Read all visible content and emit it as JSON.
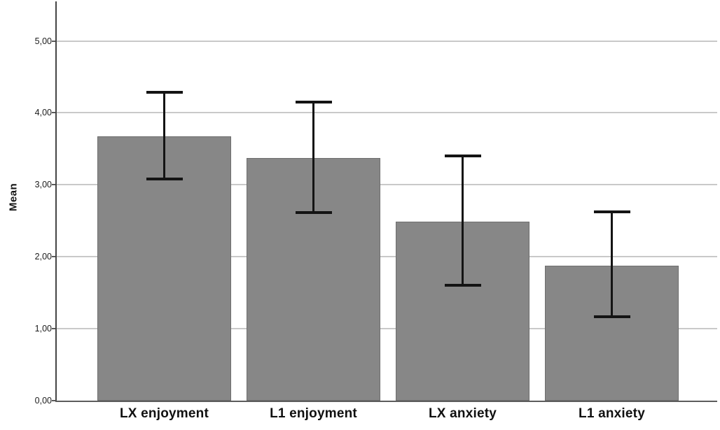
{
  "chart_data": {
    "type": "bar",
    "title": "",
    "xlabel": "",
    "ylabel": "Mean",
    "categories": [
      "LX enjoyment",
      "L1 enjoyment",
      "LX anxiety",
      "L1 anxiety"
    ],
    "series": [
      {
        "name": "Mean",
        "values": [
          3.67,
          3.37,
          2.49,
          1.88
        ]
      }
    ],
    "error_bars": {
      "upper": [
        4.29,
        4.15,
        3.4,
        2.62
      ],
      "lower": [
        3.08,
        2.61,
        1.6,
        1.17
      ]
    },
    "ylim": [
      0,
      5.5
    ],
    "yticks": [
      {
        "value": 0,
        "label": "0,00"
      },
      {
        "value": 1,
        "label": "1,00"
      },
      {
        "value": 2,
        "label": "2,00"
      },
      {
        "value": 3,
        "label": "3,00"
      },
      {
        "value": 4,
        "label": "4,00"
      },
      {
        "value": 5,
        "label": "5,00"
      }
    ],
    "grid": true,
    "legend": "none",
    "colors": {
      "bar_fill": "#878787",
      "bar_border": "#6e6e6e",
      "gridline": "#c9c9c9",
      "axis": "#454545",
      "error_bar": "#141414"
    }
  }
}
